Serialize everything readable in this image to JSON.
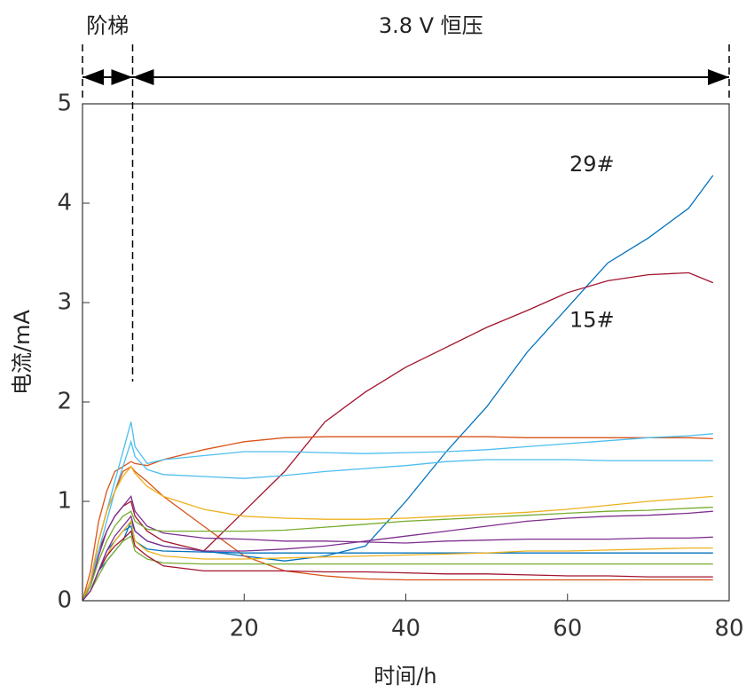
{
  "chart_data": {
    "type": "line",
    "xlabel": "时间/h",
    "ylabel": "电流/mA",
    "xlim": [
      0,
      80
    ],
    "ylim": [
      0,
      5
    ],
    "xticks": [
      20,
      40,
      60,
      80
    ],
    "yticks": [
      0,
      1,
      2,
      3,
      4,
      5
    ],
    "phases": [
      {
        "label": "阶梯",
        "start": 0,
        "end": 6.2
      },
      {
        "label": "3.8 V 恒压",
        "start": 6.2,
        "end": 80
      }
    ],
    "x": [
      0,
      1,
      2,
      3,
      4,
      5,
      6,
      6.5,
      8,
      10,
      15,
      20,
      25,
      30,
      35,
      40,
      45,
      50,
      55,
      60,
      65,
      70,
      75,
      78
    ],
    "series": [
      {
        "name": "29#",
        "color": "#0072BD",
        "values": [
          0,
          0.1,
          0.3,
          0.4,
          0.5,
          0.6,
          0.8,
          0.7,
          0.6,
          0.55,
          0.5,
          0.45,
          0.4,
          0.45,
          0.55,
          1.0,
          1.5,
          1.95,
          2.5,
          2.95,
          3.4,
          3.65,
          3.95,
          4.28
        ]
      },
      {
        "name": "15#",
        "color": "#A2142F",
        "values": [
          0,
          0.2,
          0.5,
          0.7,
          0.85,
          0.95,
          1.0,
          0.85,
          0.7,
          0.6,
          0.5,
          0.9,
          1.3,
          1.8,
          2.1,
          2.35,
          2.55,
          2.75,
          2.92,
          3.1,
          3.22,
          3.28,
          3.3,
          3.2
        ]
      },
      {
        "color": "#D95319",
        "values": [
          0,
          0.3,
          0.8,
          1.1,
          1.3,
          1.35,
          1.4,
          1.38,
          1.36,
          1.42,
          1.52,
          1.6,
          1.64,
          1.65,
          1.65,
          1.65,
          1.65,
          1.65,
          1.64,
          1.64,
          1.64,
          1.64,
          1.64,
          1.63
        ]
      },
      {
        "color": "#4DBEEE",
        "values": [
          0,
          0.2,
          0.6,
          0.9,
          1.2,
          1.5,
          1.8,
          1.55,
          1.38,
          1.42,
          1.46,
          1.5,
          1.5,
          1.49,
          1.48,
          1.49,
          1.5,
          1.52,
          1.55,
          1.58,
          1.61,
          1.64,
          1.66,
          1.68
        ]
      },
      {
        "color": "#4DBEEE",
        "values": [
          0,
          0.2,
          0.5,
          0.8,
          1.1,
          1.35,
          1.6,
          1.45,
          1.32,
          1.27,
          1.25,
          1.23,
          1.26,
          1.3,
          1.33,
          1.36,
          1.4,
          1.42,
          1.42,
          1.42,
          1.41,
          1.41,
          1.41,
          1.41
        ]
      },
      {
        "color": "#D95319",
        "values": [
          0,
          0.2,
          0.6,
          0.9,
          1.1,
          1.3,
          1.35,
          1.3,
          1.2,
          1.05,
          0.75,
          0.45,
          0.3,
          0.25,
          0.22,
          0.21,
          0.21,
          0.21,
          0.21,
          0.21,
          0.21,
          0.21,
          0.21,
          0.21
        ]
      },
      {
        "color": "#EDB120",
        "values": [
          0,
          0.2,
          0.6,
          0.9,
          1.1,
          1.25,
          1.35,
          1.28,
          1.15,
          1.05,
          0.92,
          0.85,
          0.83,
          0.82,
          0.82,
          0.83,
          0.85,
          0.87,
          0.89,
          0.92,
          0.96,
          1.0,
          1.03,
          1.05
        ]
      },
      {
        "color": "#7E2F8E",
        "values": [
          0,
          0.15,
          0.45,
          0.7,
          0.85,
          0.95,
          1.05,
          0.9,
          0.75,
          0.68,
          0.63,
          0.62,
          0.6,
          0.6,
          0.59,
          0.58,
          0.6,
          0.61,
          0.62,
          0.62,
          0.62,
          0.63,
          0.63,
          0.64
        ]
      },
      {
        "color": "#77AC30",
        "values": [
          0,
          0.15,
          0.4,
          0.6,
          0.75,
          0.85,
          0.9,
          0.8,
          0.72,
          0.7,
          0.7,
          0.7,
          0.71,
          0.74,
          0.77,
          0.8,
          0.82,
          0.84,
          0.86,
          0.88,
          0.9,
          0.91,
          0.93,
          0.94
        ]
      },
      {
        "color": "#0072BD",
        "values": [
          0,
          0.1,
          0.3,
          0.5,
          0.6,
          0.7,
          0.75,
          0.6,
          0.52,
          0.5,
          0.49,
          0.48,
          0.48,
          0.48,
          0.48,
          0.48,
          0.48,
          0.48,
          0.48,
          0.48,
          0.48,
          0.48,
          0.48,
          0.48
        ]
      },
      {
        "color": "#EDB120",
        "values": [
          0,
          0.1,
          0.3,
          0.45,
          0.6,
          0.7,
          0.8,
          0.6,
          0.5,
          0.45,
          0.42,
          0.42,
          0.43,
          0.44,
          0.45,
          0.46,
          0.47,
          0.48,
          0.5,
          0.5,
          0.51,
          0.52,
          0.53,
          0.53
        ]
      },
      {
        "color": "#77AC30",
        "values": [
          0,
          0.1,
          0.25,
          0.4,
          0.5,
          0.6,
          0.65,
          0.5,
          0.42,
          0.38,
          0.37,
          0.37,
          0.37,
          0.37,
          0.37,
          0.37,
          0.37,
          0.37,
          0.37,
          0.37,
          0.37,
          0.37,
          0.37,
          0.37
        ]
      },
      {
        "color": "#A2142F",
        "values": [
          0,
          0.1,
          0.3,
          0.45,
          0.55,
          0.62,
          0.7,
          0.55,
          0.45,
          0.35,
          0.3,
          0.3,
          0.3,
          0.29,
          0.29,
          0.28,
          0.27,
          0.27,
          0.26,
          0.25,
          0.25,
          0.24,
          0.24,
          0.24
        ]
      },
      {
        "color": "#7E2F8E",
        "values": [
          0,
          0.1,
          0.3,
          0.5,
          0.65,
          0.75,
          0.85,
          0.7,
          0.6,
          0.55,
          0.5,
          0.5,
          0.52,
          0.55,
          0.6,
          0.65,
          0.7,
          0.75,
          0.8,
          0.83,
          0.85,
          0.86,
          0.88,
          0.9
        ]
      }
    ]
  }
}
